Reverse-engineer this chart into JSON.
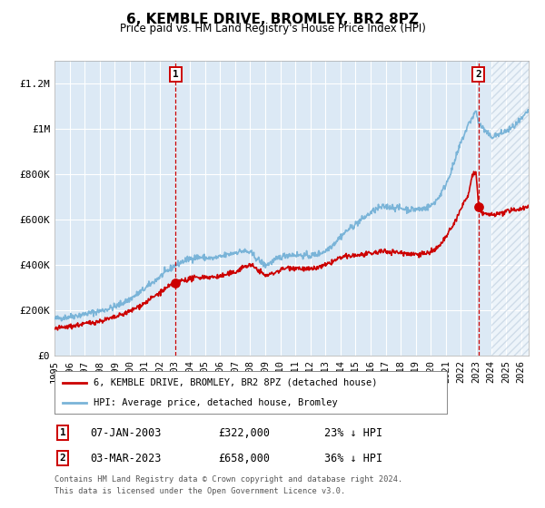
{
  "title": "6, KEMBLE DRIVE, BROMLEY, BR2 8PZ",
  "subtitle": "Price paid vs. HM Land Registry's House Price Index (HPI)",
  "background_color": "#dce9f5",
  "hatch_color": "#b0c4d8",
  "grid_color": "#ffffff",
  "hpi_line_color": "#7ab4d8",
  "price_line_color": "#cc0000",
  "sale1_date_year": 2003.04,
  "sale1_price": 322000,
  "sale1_label": "07-JAN-2003",
  "sale1_price_label": "£322,000",
  "sale1_hpi_pct": "23% ↓ HPI",
  "sale2_date_year": 2023.17,
  "sale2_price": 658000,
  "sale2_label": "03-MAR-2023",
  "sale2_price_label": "£658,000",
  "sale2_hpi_pct": "36% ↓ HPI",
  "ylim_max": 1300000,
  "xlim_min": 1995.0,
  "xlim_max": 2026.5,
  "hatch_start": 2024.0,
  "ytick_labels": [
    "£0",
    "£200K",
    "£400K",
    "£600K",
    "£800K",
    "£1M",
    "£1.2M"
  ],
  "ytick_values": [
    0,
    200000,
    400000,
    600000,
    800000,
    1000000,
    1200000
  ],
  "xtick_years": [
    1995,
    1996,
    1997,
    1998,
    1999,
    2000,
    2001,
    2002,
    2003,
    2004,
    2005,
    2006,
    2007,
    2008,
    2009,
    2010,
    2011,
    2012,
    2013,
    2014,
    2015,
    2016,
    2017,
    2018,
    2019,
    2020,
    2021,
    2022,
    2023,
    2024,
    2025,
    2026
  ],
  "legend_red_label": "6, KEMBLE DRIVE, BROMLEY, BR2 8PZ (detached house)",
  "legend_blue_label": "HPI: Average price, detached house, Bromley",
  "footer_line1": "Contains HM Land Registry data © Crown copyright and database right 2024.",
  "footer_line2": "This data is licensed under the Open Government Licence v3.0."
}
